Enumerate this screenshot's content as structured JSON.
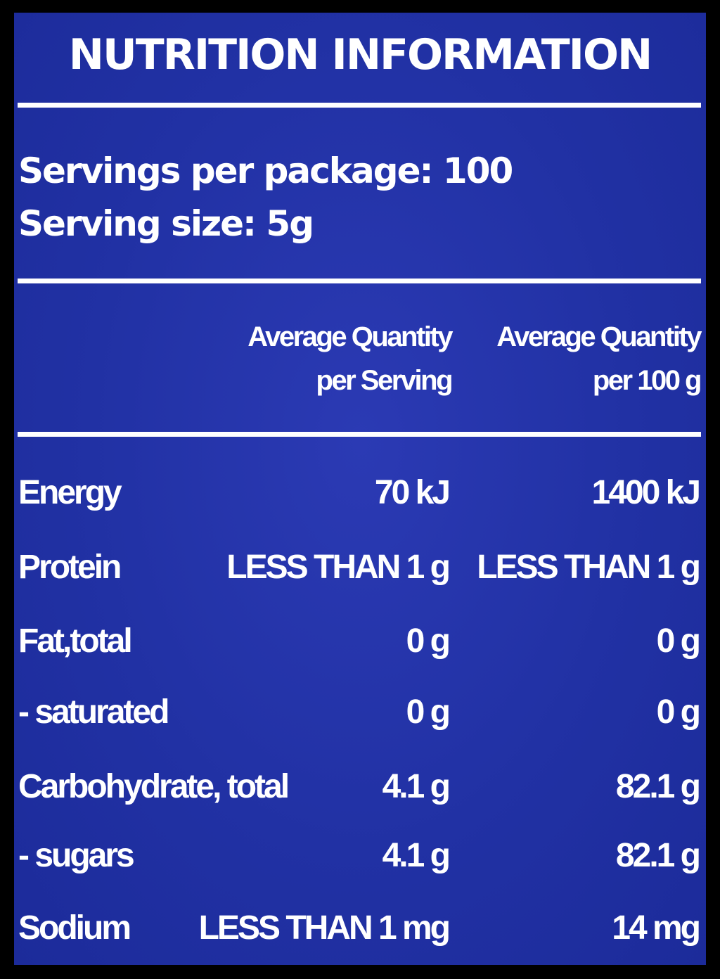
{
  "title": "NUTRITION INFORMATION",
  "servings": {
    "per_package": "Servings per package: 100",
    "size": "Serving size: 5g"
  },
  "columns": {
    "per_serving": [
      "Average Quantity",
      "per Serving"
    ],
    "per_100g": [
      "Average Quantity",
      "per 100 g"
    ]
  },
  "rows": [
    {
      "name": "Energy",
      "per_serving": "70 kJ",
      "per_100g": "1400 kJ"
    },
    {
      "name": "Protein",
      "per_serving": "LESS THAN 1 g",
      "per_100g": "LESS THAN 1 g"
    },
    {
      "name": "Fat,total",
      "per_serving": "0 g",
      "per_100g": "0 g"
    },
    {
      "name": "- saturated",
      "per_serving": "0 g",
      "per_100g": "0 g"
    },
    {
      "name": "Carbohydrate, total",
      "per_serving": "4.1 g",
      "per_100g": "82.1 g"
    },
    {
      "name": "- sugars",
      "per_serving": "4.1 g",
      "per_100g": "82.1 g"
    },
    {
      "name": "Sodium",
      "per_serving": "LESS THAN 1 mg",
      "per_100g": "14 mg"
    }
  ],
  "colors": {
    "panel_background": "#2433a6",
    "text": "#ffffff",
    "frame": "#000000"
  }
}
